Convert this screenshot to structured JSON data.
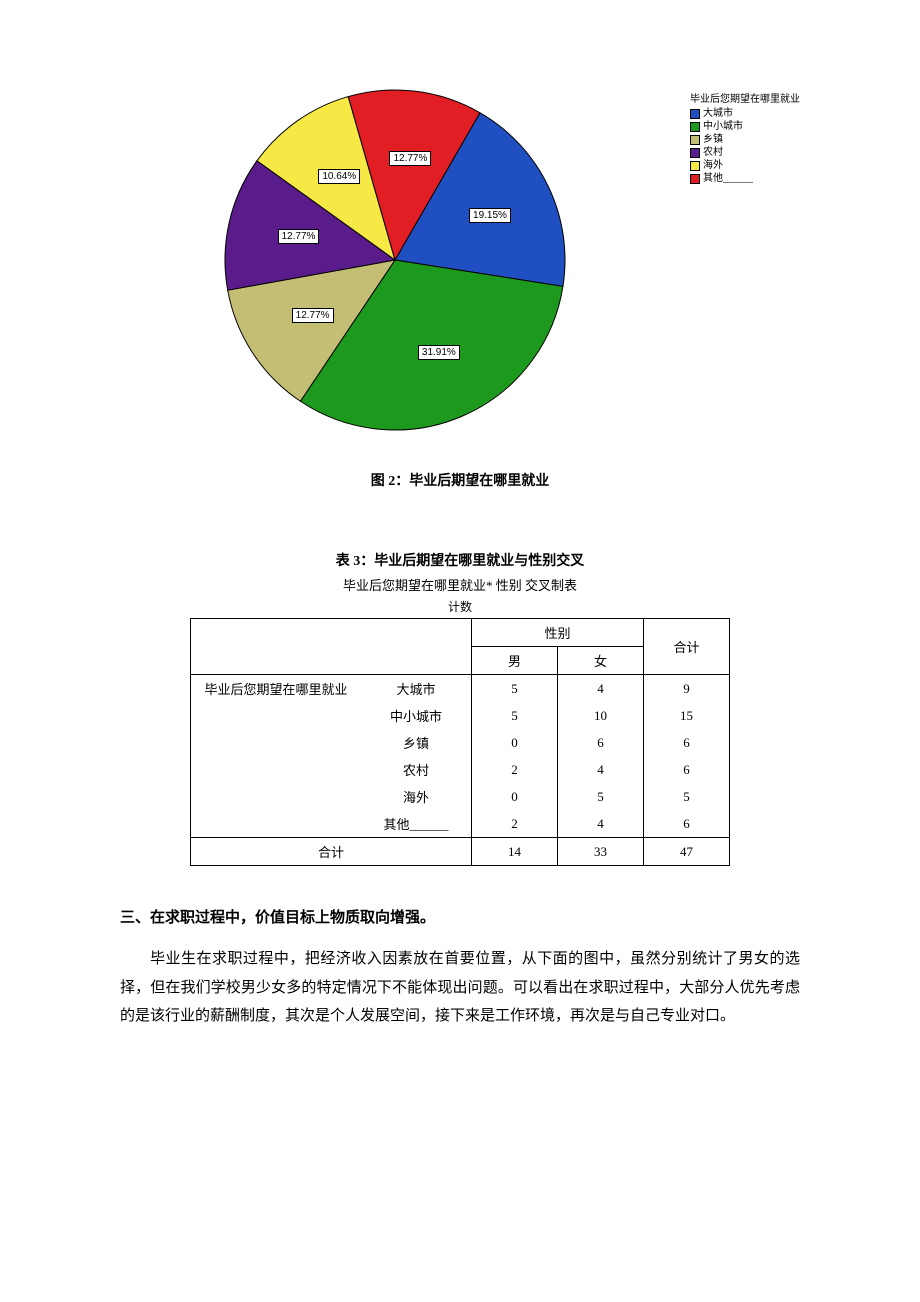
{
  "pie_chart": {
    "type": "pie",
    "legend_title": "毕业后您期望在哪里就业",
    "background_color": "#ffffff",
    "radius": 170,
    "stroke": "#000000",
    "stroke_width": 1,
    "label_fontsize": 10,
    "label_bg": "#ffffff",
    "label_border": "#000000",
    "start_angle_deg": -60,
    "slices": [
      {
        "name": "大城市",
        "value": 19.15,
        "label": "19.15%",
        "color": "#1f4fc1"
      },
      {
        "name": "中小城市",
        "value": 31.91,
        "label": "31.91%",
        "color": "#1d9a1d"
      },
      {
        "name": "乡镇",
        "value": 12.77,
        "label": "12.77%",
        "color": "#c4bd74"
      },
      {
        "name": "农村",
        "value": 12.77,
        "label": "12.77%",
        "color": "#5a1b8b"
      },
      {
        "name": "海外",
        "value": 10.64,
        "label": "10.64%",
        "color": "#f6e946"
      },
      {
        "name": "其他______",
        "value": 12.77,
        "label": "12.77%",
        "color": "#e21e25"
      }
    ]
  },
  "fig_caption": "图 2：毕业后期望在哪里就业",
  "table": {
    "title": "表 3：毕业后期望在哪里就业与性别交叉",
    "subtitle": "毕业后您期望在哪里就业*  性别  交叉制表",
    "count_label": "计数",
    "row_group_label": "毕业后您期望在哪里就业",
    "col_group_label": "性别",
    "col_headers": [
      "男",
      "女"
    ],
    "total_label": "合计",
    "rows": [
      {
        "label": "大城市",
        "cells": [
          5,
          4
        ],
        "total": 9
      },
      {
        "label": "中小城市",
        "cells": [
          5,
          10
        ],
        "total": 15
      },
      {
        "label": "乡镇",
        "cells": [
          0,
          6
        ],
        "total": 6
      },
      {
        "label": "农村",
        "cells": [
          2,
          4
        ],
        "total": 6
      },
      {
        "label": "海外",
        "cells": [
          0,
          5
        ],
        "total": 5
      },
      {
        "label": "其他______",
        "cells": [
          2,
          4
        ],
        "total": 6
      }
    ],
    "totals": {
      "cells": [
        14,
        33
      ],
      "total": 47
    }
  },
  "section_heading": "三、在求职过程中，价值目标上物质取向增强。",
  "body_paragraph": "毕业生在求职过程中，把经济收入因素放在首要位置，从下面的图中，虽然分别统计了男女的选择，但在我们学校男少女多的特定情况下不能体现出问题。可以看出在求职过程中，大部分人优先考虑的是该行业的薪酬制度，其次是个人发展空间，接下来是工作环境，再次是与自己专业对口。"
}
